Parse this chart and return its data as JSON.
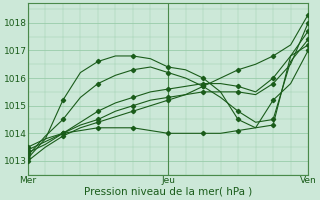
{
  "title": "",
  "xlabel": "Pression niveau de la mer( hPa )",
  "bg_color": "#cce8d8",
  "grid_color": "#99ccaa",
  "line_color": "#1a5c1a",
  "dark_line_color": "#1a5c1a",
  "ylim": [
    1012.5,
    1018.7
  ],
  "xlim": [
    0,
    48
  ],
  "x_ticks": [
    0,
    24,
    48
  ],
  "x_tick_labels": [
    "Mer",
    "Jeu",
    "Ven"
  ],
  "y_ticks": [
    1013,
    1014,
    1015,
    1016,
    1017,
    1018
  ],
  "lines": [
    {
      "x": [
        0,
        3,
        6,
        9,
        12,
        15,
        18,
        21,
        24,
        27,
        30,
        33,
        36,
        39,
        42,
        45,
        48
      ],
      "y": [
        1013.1,
        1013.8,
        1015.2,
        1016.2,
        1016.6,
        1016.8,
        1016.8,
        1016.7,
        1016.4,
        1016.3,
        1016.0,
        1015.5,
        1014.5,
        1014.2,
        1014.3,
        1016.8,
        1017.2
      ]
    },
    {
      "x": [
        0,
        3,
        6,
        9,
        12,
        15,
        18,
        21,
        24,
        27,
        30,
        33,
        36,
        39,
        42,
        45,
        48
      ],
      "y": [
        1013.2,
        1013.9,
        1014.5,
        1015.3,
        1015.8,
        1016.1,
        1016.3,
        1016.4,
        1016.2,
        1016.0,
        1015.7,
        1015.3,
        1014.8,
        1014.4,
        1014.5,
        1016.6,
        1017.4
      ]
    },
    {
      "x": [
        0,
        3,
        6,
        9,
        12,
        15,
        18,
        21,
        24,
        27,
        30,
        33,
        36,
        39,
        42,
        45,
        48
      ],
      "y": [
        1013.3,
        1013.6,
        1014.0,
        1014.4,
        1014.8,
        1015.1,
        1015.3,
        1015.5,
        1015.6,
        1015.7,
        1015.8,
        1015.8,
        1015.7,
        1015.5,
        1016.0,
        1016.8,
        1017.7
      ]
    },
    {
      "x": [
        0,
        3,
        6,
        9,
        12,
        15,
        18,
        21,
        24,
        27,
        30,
        33,
        36,
        39,
        42,
        45,
        48
      ],
      "y": [
        1013.4,
        1013.7,
        1014.0,
        1014.3,
        1014.5,
        1014.8,
        1015.0,
        1015.2,
        1015.3,
        1015.4,
        1015.5,
        1015.5,
        1015.5,
        1015.4,
        1015.8,
        1016.5,
        1018.0
      ]
    },
    {
      "x": [
        0,
        3,
        6,
        9,
        12,
        15,
        18,
        21,
        24,
        27,
        30,
        33,
        36,
        39,
        42,
        45,
        48
      ],
      "y": [
        1013.5,
        1013.8,
        1014.0,
        1014.1,
        1014.2,
        1014.2,
        1014.2,
        1014.1,
        1014.0,
        1014.0,
        1014.0,
        1014.0,
        1014.1,
        1014.2,
        1015.2,
        1015.8,
        1017.0
      ]
    },
    {
      "x": [
        0,
        3,
        6,
        9,
        12,
        15,
        18,
        21,
        24,
        27,
        30,
        33,
        36,
        39,
        42,
        45,
        48
      ],
      "y": [
        1013.0,
        1013.5,
        1013.9,
        1014.2,
        1014.4,
        1014.6,
        1014.8,
        1015.0,
        1015.2,
        1015.4,
        1015.7,
        1016.0,
        1016.3,
        1016.5,
        1016.8,
        1017.2,
        1018.3
      ]
    }
  ]
}
